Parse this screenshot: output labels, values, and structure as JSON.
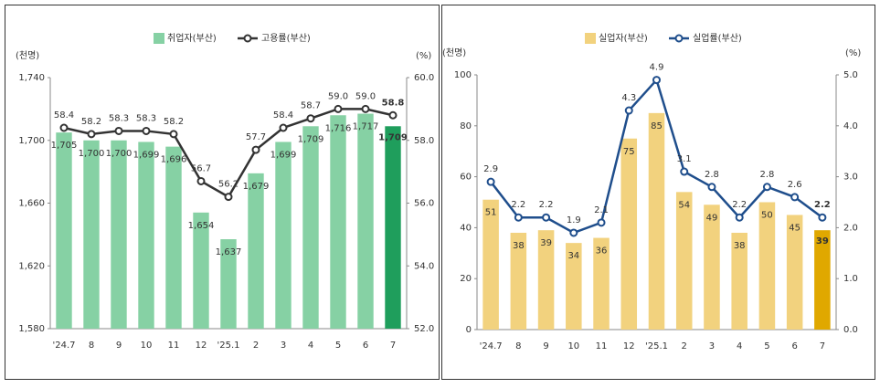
{
  "chart_data": [
    {
      "type": "bar-line",
      "categories": [
        "'24.7",
        "8",
        "9",
        "10",
        "11",
        "12",
        "'25.1",
        "2",
        "3",
        "4",
        "5",
        "6",
        "7"
      ],
      "y_unit": "(천명)",
      "y2_unit": "(%)",
      "ylim": [
        1580,
        1740
      ],
      "yticks": [
        {
          "value": 1580,
          "label": "1,580"
        },
        {
          "value": 1620,
          "label": "1,620"
        },
        {
          "value": 1660,
          "label": "1,660"
        },
        {
          "value": 1700,
          "label": "1,700"
        },
        {
          "value": 1740,
          "label": "1,740"
        }
      ],
      "y2lim": [
        52,
        60
      ],
      "y2ticks": [
        {
          "value": 52,
          "label": "52.0"
        },
        {
          "value": 54,
          "label": "54.0"
        },
        {
          "value": 56,
          "label": "56.0"
        },
        {
          "value": 58,
          "label": "58.0"
        },
        {
          "value": 60,
          "label": "60.0"
        }
      ],
      "series": [
        {
          "name": "취업자(부산)",
          "color": "#86d1a4",
          "highlight_color": "#1f9e5c",
          "values": [
            1705,
            1700,
            1700,
            1699,
            1696,
            1654,
            1637,
            1679,
            1699,
            1709,
            1716,
            1717,
            1709
          ],
          "value_labels": [
            "1,705",
            "1,700",
            "1,700",
            "1,699",
            "1,696",
            "1,654",
            "1,637",
            "1,679",
            "1,699",
            "1,709",
            "1,716",
            "1,717",
            "1,709"
          ]
        },
        {
          "name": "고용률(부산)",
          "color": "#333333",
          "axis": "y2",
          "values": [
            58.4,
            58.2,
            58.3,
            58.3,
            58.2,
            56.7,
            56.2,
            57.7,
            58.4,
            58.7,
            59.0,
            59.0,
            58.8
          ],
          "value_labels": [
            "58.4",
            "58.2",
            "58.3",
            "58.3",
            "58.2",
            "56.7",
            "56.2",
            "57.7",
            "58.4",
            "58.7",
            "59.0",
            "59.0",
            "58.8"
          ]
        }
      ]
    },
    {
      "type": "bar-line",
      "categories": [
        "'24.7",
        "8",
        "9",
        "10",
        "11",
        "12",
        "'25.1",
        "2",
        "3",
        "4",
        "5",
        "6",
        "7"
      ],
      "y_unit": "(천명)",
      "y2_unit": "(%)",
      "ylim": [
        0,
        100
      ],
      "yticks": [
        0,
        20,
        40,
        60,
        80,
        100
      ],
      "y2lim": [
        0,
        5
      ],
      "y2ticks": [
        {
          "value": 0,
          "label": "0.0"
        },
        {
          "value": 1,
          "label": "1.0"
        },
        {
          "value": 2,
          "label": "2.0"
        },
        {
          "value": 3,
          "label": "3.0"
        },
        {
          "value": 4,
          "label": "4.0"
        },
        {
          "value": 5,
          "label": "5.0"
        }
      ],
      "series": [
        {
          "name": "실업자(부산)",
          "color": "#f2d27e",
          "highlight_color": "#e0a800",
          "values": [
            51,
            38,
            39,
            34,
            36,
            75,
            85,
            54,
            49,
            38,
            50,
            45,
            39
          ]
        },
        {
          "name": "실업률(부산)",
          "color": "#1f4e8c",
          "axis": "y2",
          "values": [
            2.9,
            2.2,
            2.2,
            1.9,
            2.1,
            4.3,
            4.9,
            3.1,
            2.8,
            2.2,
            2.8,
            2.6,
            2.2
          ]
        }
      ]
    }
  ]
}
